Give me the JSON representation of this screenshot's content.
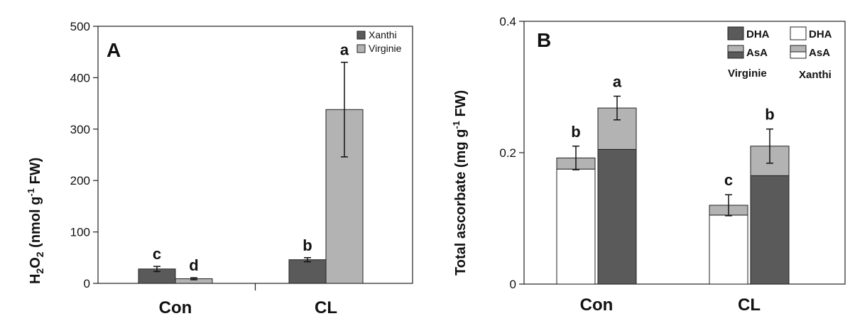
{
  "chart_data": [
    {
      "type": "bar",
      "panel": "A",
      "ylabel_main": "H",
      "ylabel_sub1": "2",
      "ylabel_mid": "O",
      "ylabel_sub2": "2",
      "ylabel_rest": " (nmol g",
      "ylabel_sup": "-1",
      "ylabel_end": " FW)",
      "ylim": [
        0,
        500
      ],
      "yticks": [
        "0",
        "100",
        "200",
        "300",
        "400",
        "500"
      ],
      "categories": [
        "Con",
        "CL"
      ],
      "series": [
        {
          "name": "Xanthi",
          "color": "#5a5a5a",
          "values": [
            28,
            46
          ],
          "errors": [
            5,
            4
          ],
          "letters": [
            "c",
            "b"
          ]
        },
        {
          "name": "Virginie",
          "color": "#b3b3b3",
          "values": [
            9,
            338
          ],
          "errors": [
            2,
            92
          ],
          "letters": [
            "d",
            "a"
          ]
        }
      ],
      "legend_position": "top-right",
      "grid": false
    },
    {
      "type": "bar",
      "stacked": true,
      "panel": "B",
      "ylabel": "Total ascorbate (mg g",
      "ylabel_sup": "-1",
      "ylabel_end": " FW)",
      "ylim": [
        0,
        0.4
      ],
      "yticks": [
        "0",
        "0.2",
        "0.4"
      ],
      "categories": [
        "Con",
        "CL"
      ],
      "groups": [
        {
          "name": "Xanthi",
          "asa": [
            0.175,
            0.105
          ],
          "dha": [
            0.017,
            0.015
          ],
          "errors": [
            0.018,
            0.016
          ],
          "letters": [
            "b",
            "c"
          ],
          "asa_color": "#ffffff",
          "dha_color": "#b3b3b3"
        },
        {
          "name": "Virginie",
          "asa": [
            0.205,
            0.165
          ],
          "dha": [
            0.063,
            0.045
          ],
          "errors": [
            0.018,
            0.026
          ],
          "letters": [
            "a",
            "b"
          ],
          "asa_color": "#5a5a5a",
          "dha_color": "#b3b3b3"
        }
      ],
      "legend": {
        "virginie": {
          "dha": "DHA",
          "asa": "AsA",
          "label": "Virginie"
        },
        "xanthi": {
          "dha": "DHA",
          "asa": "AsA",
          "label": "Xanthi"
        }
      },
      "legend_position": "top-right",
      "grid": false
    }
  ]
}
